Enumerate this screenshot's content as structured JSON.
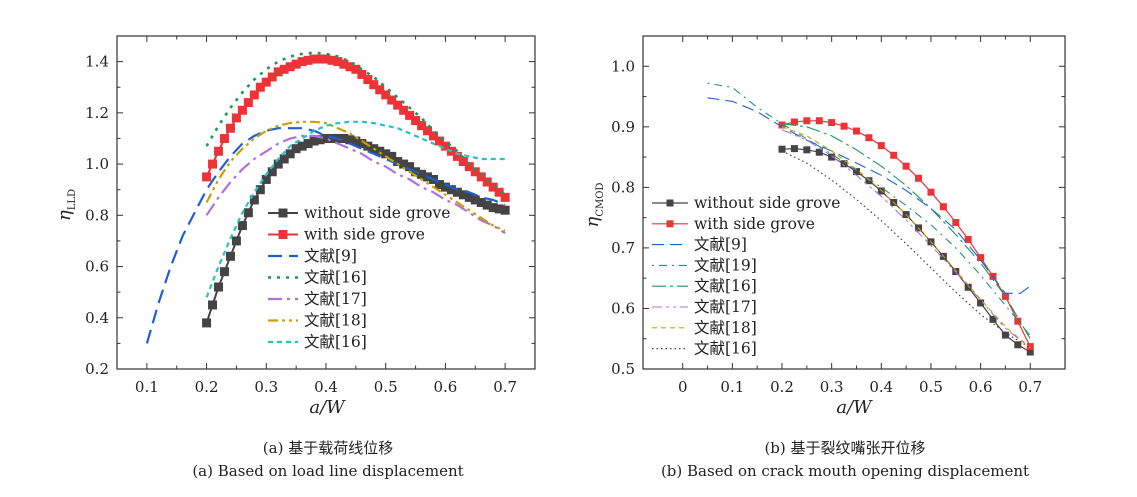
{
  "colors": {
    "without": "#444444",
    "with": "#ee3338",
    "ref9": "#1f5fd6",
    "ref16": "#1a9a5a",
    "ref17": "#b070e0",
    "ref18": "#c9a000",
    "ref16b": "#20c4cc",
    "ref19": "#2f8a8a",
    "ref16dot": "#444444"
  },
  "chart_data": [
    {
      "type": "line",
      "ylabel": "η",
      "ylabel_sub": "LLD",
      "xlabel": "a/W",
      "xlim": [
        0.05,
        0.75
      ],
      "ylim": [
        0.2,
        1.5
      ],
      "xticks": [
        0.1,
        0.2,
        0.3,
        0.4,
        0.5,
        0.6,
        0.7
      ],
      "yticks": [
        0.2,
        0.4,
        0.6,
        0.8,
        1.0,
        1.2,
        1.4
      ],
      "legend": "bottom-center",
      "series": [
        {
          "name": "without side grove",
          "key": "without",
          "marker": "square",
          "dash": "",
          "width": 2,
          "x": [
            0.2,
            0.21,
            0.22,
            0.23,
            0.24,
            0.25,
            0.26,
            0.27,
            0.28,
            0.29,
            0.3,
            0.31,
            0.32,
            0.33,
            0.34,
            0.35,
            0.36,
            0.37,
            0.38,
            0.39,
            0.4,
            0.41,
            0.42,
            0.43,
            0.44,
            0.45,
            0.46,
            0.47,
            0.48,
            0.49,
            0.5,
            0.51,
            0.52,
            0.53,
            0.54,
            0.55,
            0.56,
            0.57,
            0.58,
            0.59,
            0.6,
            0.61,
            0.62,
            0.63,
            0.64,
            0.65,
            0.66,
            0.67,
            0.68,
            0.69,
            0.7
          ],
          "y": [
            0.38,
            0.45,
            0.52,
            0.58,
            0.64,
            0.7,
            0.76,
            0.81,
            0.86,
            0.9,
            0.94,
            0.97,
            1.0,
            1.02,
            1.04,
            1.06,
            1.07,
            1.08,
            1.09,
            1.095,
            1.1,
            1.1,
            1.1,
            1.1,
            1.095,
            1.09,
            1.08,
            1.07,
            1.06,
            1.05,
            1.04,
            1.03,
            1.01,
            1.0,
            0.99,
            0.97,
            0.96,
            0.95,
            0.94,
            0.92,
            0.91,
            0.9,
            0.89,
            0.88,
            0.87,
            0.86,
            0.85,
            0.84,
            0.83,
            0.825,
            0.82
          ]
        },
        {
          "name": "with side grove",
          "key": "with",
          "marker": "square",
          "dash": "",
          "width": 2,
          "x": [
            0.2,
            0.21,
            0.22,
            0.23,
            0.24,
            0.25,
            0.26,
            0.27,
            0.28,
            0.29,
            0.3,
            0.31,
            0.32,
            0.33,
            0.34,
            0.35,
            0.36,
            0.37,
            0.38,
            0.39,
            0.4,
            0.41,
            0.42,
            0.43,
            0.44,
            0.45,
            0.46,
            0.47,
            0.48,
            0.49,
            0.5,
            0.51,
            0.52,
            0.53,
            0.54,
            0.55,
            0.56,
            0.57,
            0.58,
            0.59,
            0.6,
            0.61,
            0.62,
            0.63,
            0.64,
            0.65,
            0.66,
            0.67,
            0.68,
            0.69,
            0.7
          ],
          "y": [
            0.95,
            1.0,
            1.05,
            1.1,
            1.14,
            1.18,
            1.21,
            1.24,
            1.27,
            1.3,
            1.32,
            1.34,
            1.36,
            1.37,
            1.38,
            1.39,
            1.4,
            1.405,
            1.41,
            1.41,
            1.41,
            1.405,
            1.4,
            1.39,
            1.38,
            1.37,
            1.35,
            1.33,
            1.31,
            1.29,
            1.27,
            1.25,
            1.23,
            1.21,
            1.19,
            1.17,
            1.15,
            1.13,
            1.11,
            1.09,
            1.07,
            1.05,
            1.03,
            1.01,
            0.99,
            0.97,
            0.95,
            0.93,
            0.91,
            0.89,
            0.87
          ]
        },
        {
          "name": "文献[9]",
          "key": "ref9",
          "marker": "",
          "dash": "14,7",
          "width": 2.2,
          "x": [
            0.1,
            0.12,
            0.14,
            0.16,
            0.18,
            0.2,
            0.22,
            0.24,
            0.26,
            0.28,
            0.3,
            0.32,
            0.34,
            0.36,
            0.38,
            0.4,
            0.42,
            0.44,
            0.46,
            0.48,
            0.5,
            0.52,
            0.54,
            0.56,
            0.58,
            0.6,
            0.62,
            0.64,
            0.66,
            0.68,
            0.7
          ],
          "y": [
            0.3,
            0.46,
            0.6,
            0.72,
            0.81,
            0.9,
            0.97,
            1.03,
            1.08,
            1.11,
            1.13,
            1.14,
            1.14,
            1.14,
            1.13,
            1.11,
            1.1,
            1.08,
            1.06,
            1.04,
            1.02,
            1.0,
            0.98,
            0.96,
            0.94,
            0.92,
            0.9,
            0.89,
            0.87,
            0.86,
            0.84
          ]
        },
        {
          "name": "文献[16]",
          "key": "ref16",
          "marker": "",
          "dash": "3,6",
          "width": 2.6,
          "x": [
            0.2,
            0.22,
            0.24,
            0.26,
            0.28,
            0.3,
            0.32,
            0.34,
            0.36,
            0.38,
            0.4,
            0.42,
            0.44,
            0.46,
            0.48,
            0.5,
            0.52,
            0.54,
            0.56,
            0.58,
            0.6,
            0.62,
            0.64,
            0.66,
            0.68,
            0.7
          ],
          "y": [
            1.07,
            1.15,
            1.22,
            1.28,
            1.33,
            1.37,
            1.4,
            1.42,
            1.43,
            1.435,
            1.43,
            1.42,
            1.4,
            1.37,
            1.34,
            1.3,
            1.26,
            1.22,
            1.18,
            1.13,
            1.09,
            1.05,
            1.0,
            0.96,
            0.92,
            0.88
          ]
        },
        {
          "name": "文献[17]",
          "key": "ref17",
          "marker": "",
          "dash": "14,5,3,5",
          "width": 2.2,
          "x": [
            0.2,
            0.22,
            0.24,
            0.26,
            0.28,
            0.3,
            0.32,
            0.34,
            0.36,
            0.38,
            0.4,
            0.42,
            0.44,
            0.46,
            0.48,
            0.5,
            0.52,
            0.54,
            0.56,
            0.58,
            0.6,
            0.62,
            0.64,
            0.66,
            0.68,
            0.7
          ],
          "y": [
            0.8,
            0.87,
            0.93,
            0.98,
            1.02,
            1.05,
            1.08,
            1.1,
            1.11,
            1.11,
            1.1,
            1.08,
            1.06,
            1.04,
            1.01,
            0.99,
            0.96,
            0.94,
            0.91,
            0.89,
            0.86,
            0.84,
            0.81,
            0.78,
            0.76,
            0.73
          ]
        },
        {
          "name": "文献[18]",
          "key": "ref18",
          "marker": "",
          "dash": "10,4,3,4,3,4",
          "width": 2.2,
          "x": [
            0.2,
            0.22,
            0.24,
            0.26,
            0.28,
            0.3,
            0.32,
            0.34,
            0.36,
            0.38,
            0.4,
            0.42,
            0.44,
            0.46,
            0.48,
            0.5,
            0.52,
            0.54,
            0.56,
            0.58,
            0.6,
            0.62,
            0.64,
            0.66,
            0.68,
            0.7
          ],
          "y": [
            0.85,
            0.94,
            1.01,
            1.06,
            1.1,
            1.13,
            1.15,
            1.16,
            1.165,
            1.165,
            1.16,
            1.14,
            1.12,
            1.09,
            1.06,
            1.03,
            1.0,
            0.97,
            0.94,
            0.91,
            0.88,
            0.85,
            0.82,
            0.79,
            0.76,
            0.74
          ]
        },
        {
          "name": "文献[16]",
          "key": "ref16b",
          "marker": "",
          "dash": "5,4",
          "width": 2.2,
          "x": [
            0.2,
            0.22,
            0.24,
            0.26,
            0.28,
            0.3,
            0.32,
            0.34,
            0.36,
            0.38,
            0.4,
            0.42,
            0.44,
            0.46,
            0.48,
            0.5,
            0.52,
            0.54,
            0.56,
            0.58,
            0.6,
            0.62,
            0.64,
            0.66,
            0.68,
            0.7
          ],
          "y": [
            0.48,
            0.6,
            0.71,
            0.81,
            0.89,
            0.96,
            1.02,
            1.07,
            1.1,
            1.13,
            1.15,
            1.16,
            1.165,
            1.165,
            1.16,
            1.15,
            1.14,
            1.12,
            1.1,
            1.08,
            1.06,
            1.04,
            1.03,
            1.02,
            1.02,
            1.02
          ]
        }
      ]
    },
    {
      "type": "line",
      "ylabel": "η",
      "ylabel_sub": "CMOD",
      "xlabel": "a/W",
      "xlim": [
        -0.08,
        0.77
      ],
      "ylim": [
        0.5,
        1.05
      ],
      "xticks": [
        0,
        0.1,
        0.2,
        0.3,
        0.4,
        0.5,
        0.6,
        0.7
      ],
      "yticks": [
        0.5,
        0.6,
        0.7,
        0.8,
        0.9,
        1.0
      ],
      "legend": "left",
      "series": [
        {
          "name": "without side grove",
          "key": "without",
          "marker": "square",
          "dash": "",
          "width": 1.2,
          "x": [
            0.2,
            0.225,
            0.25,
            0.275,
            0.3,
            0.325,
            0.35,
            0.375,
            0.4,
            0.425,
            0.45,
            0.475,
            0.5,
            0.525,
            0.55,
            0.575,
            0.6,
            0.625,
            0.65,
            0.675,
            0.7
          ],
          "y": [
            0.863,
            0.864,
            0.862,
            0.858,
            0.85,
            0.839,
            0.826,
            0.811,
            0.794,
            0.775,
            0.755,
            0.733,
            0.71,
            0.686,
            0.661,
            0.635,
            0.609,
            0.582,
            0.556,
            0.54,
            0.528
          ]
        },
        {
          "name": "with side grove",
          "key": "with",
          "marker": "square",
          "dash": "",
          "width": 1.2,
          "x": [
            0.2,
            0.225,
            0.25,
            0.275,
            0.3,
            0.325,
            0.35,
            0.375,
            0.4,
            0.425,
            0.45,
            0.475,
            0.5,
            0.525,
            0.55,
            0.575,
            0.6,
            0.625,
            0.65,
            0.675,
            0.7
          ],
          "y": [
            0.903,
            0.908,
            0.91,
            0.91,
            0.907,
            0.901,
            0.893,
            0.882,
            0.869,
            0.853,
            0.835,
            0.815,
            0.792,
            0.768,
            0.742,
            0.714,
            0.684,
            0.653,
            0.62,
            0.579,
            0.537
          ]
        },
        {
          "name": "文献[9]",
          "key": "ref9",
          "marker": "",
          "dash": "12,6",
          "width": 1.1,
          "x": [
            0.05,
            0.1,
            0.15,
            0.2,
            0.25,
            0.3,
            0.35,
            0.4,
            0.45,
            0.5,
            0.55,
            0.6,
            0.65,
            0.68,
            0.7
          ],
          "y": [
            0.948,
            0.942,
            0.925,
            0.9,
            0.878,
            0.86,
            0.84,
            0.82,
            0.795,
            0.765,
            0.73,
            0.68,
            0.625,
            0.625,
            0.637
          ]
        },
        {
          "name": "文献[19]",
          "key": "ref19",
          "marker": "",
          "dash": "2,5,8,5",
          "width": 1.1,
          "x": [
            0.05,
            0.1,
            0.15,
            0.2,
            0.25,
            0.3,
            0.35,
            0.4,
            0.45,
            0.5,
            0.55,
            0.6,
            0.65,
            0.7
          ],
          "y": [
            0.972,
            0.965,
            0.932,
            0.905,
            0.88,
            0.855,
            0.828,
            0.8,
            0.77,
            0.738,
            0.7,
            0.655,
            0.605,
            0.555
          ]
        },
        {
          "name": "文献[16]",
          "key": "ref16",
          "marker": "",
          "dash": "14,4,3,4",
          "width": 1.1,
          "x": [
            0.2,
            0.25,
            0.3,
            0.35,
            0.4,
            0.45,
            0.5,
            0.55,
            0.6,
            0.65,
            0.7
          ],
          "y": [
            0.905,
            0.9,
            0.885,
            0.862,
            0.835,
            0.803,
            0.765,
            0.722,
            0.675,
            0.62,
            0.55
          ]
        },
        {
          "name": "文献[17]",
          "key": "ref17",
          "marker": "",
          "dash": "10,4,3,4,3,4",
          "width": 1.1,
          "x": [
            0.2,
            0.25,
            0.3,
            0.35,
            0.4,
            0.45,
            0.5,
            0.55,
            0.6,
            0.65,
            0.7
          ],
          "y": [
            0.895,
            0.878,
            0.852,
            0.82,
            0.785,
            0.746,
            0.704,
            0.66,
            0.614,
            0.567,
            0.535
          ]
        },
        {
          "name": "文献[18]",
          "key": "ref18",
          "marker": "",
          "dash": "5,4",
          "width": 1.1,
          "x": [
            0.2,
            0.25,
            0.3,
            0.35,
            0.4,
            0.45,
            0.5,
            0.55,
            0.6,
            0.65,
            0.7
          ],
          "y": [
            0.9,
            0.885,
            0.86,
            0.83,
            0.795,
            0.755,
            0.71,
            0.663,
            0.615,
            0.57,
            0.535
          ]
        },
        {
          "name": "文献[16]",
          "key": "ref16dot",
          "marker": "",
          "dash": "1.5,3",
          "width": 1.2,
          "x": [
            0.2,
            0.25,
            0.3,
            0.35,
            0.4,
            0.45,
            0.5,
            0.55,
            0.6,
            0.65,
            0.7
          ],
          "y": [
            0.86,
            0.84,
            0.812,
            0.78,
            0.745,
            0.707,
            0.667,
            0.627,
            0.59,
            0.56,
            0.535
          ]
        }
      ]
    }
  ],
  "captions": [
    {
      "cn": "(a) 基于载荷线位移",
      "en": "(a) Based on load line displacement"
    },
    {
      "cn": "(b) 基于裂纹嘴张开位移",
      "en": "(b) Based on crack mouth opening displacement"
    }
  ]
}
